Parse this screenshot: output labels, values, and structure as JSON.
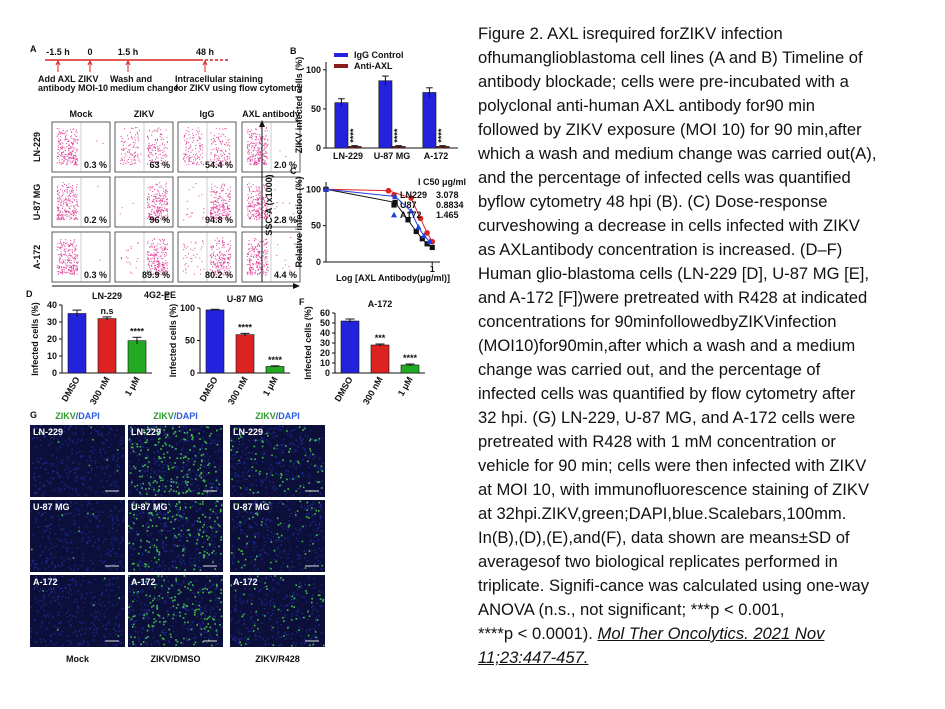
{
  "caption": {
    "lines": [
      "Figure 2. AXL isrequired forZIKV infection",
      "ofhumanglioblastoma cell lines (A and B) Timeline of",
      "antibody blockade; cells were pre-incubated with a",
      "polyclonal anti-human AXL antibody for90 min",
      "followed by ZIKV exposure (MOI 10) for 90 min,after",
      "which a wash and medium change was carried out(A),",
      "and the percentage of infected cells was quantified",
      "byflow cytometry 48 hpi (B). (C) Dose-response",
      "curveshowing a decrease in cells infected with ZIKV",
      "as AXLantibody concentration is increased. (D–F)",
      "Human glio-blastoma cells (LN-229 [D], U-87 MG [E],",
      "and A-172 [F])were pretreated with R428 at indicated",
      "concentrations for 90minfollowedbyZIKVinfection",
      "(MOI10)for90min,after which a wash and a medium",
      "change was carried out, and the percentage of",
      "infected cells was quantified by flow cytometry after",
      "32 hpi. (G) LN-229, U-87 MG, and A-172 cells were",
      "pretreated with R428 with 1 mM concentration or",
      "vehicle for 90 min; cells were then infected with ZIKV",
      "at MOI 10, with immunofluorescence staining of ZIKV",
      "at 32hpi.ZIKV,green;DAPI,blue.Scalebars,100mm.",
      "In(B),(D),(E),and(F), data shown are means±SD of",
      "averagesof two biological replicates performed in",
      "triplicate. Signifi-cance was calculated using one-way",
      "ANOVA (n.s., not significant; ***p < 0.001,"
    ],
    "final_text": "****p < 0.0001).",
    "citation": [
      "Mol Ther Oncolytics. 2021 Nov",
      "11;23:447-457."
    ]
  },
  "panel_a": {
    "label": "A",
    "times": [
      "-1.5 h",
      "0",
      "1.5 h",
      "48 h"
    ],
    "steps": [
      [
        "Add AXL",
        "antibody"
      ],
      [
        "ZIKV",
        "MOI-10"
      ],
      [
        "Wash and",
        "medium change"
      ],
      [
        "Intracellular staining",
        "for ZIKV using flow cytometry"
      ]
    ],
    "columns": [
      "Mock",
      "ZIKV",
      "IgG",
      "AXL antibody"
    ],
    "rows": [
      "LN-229",
      "U-87 MG",
      "A-172"
    ],
    "percentages": [
      [
        "0.3 %",
        "63 %",
        "54.4 %",
        "2.0 %"
      ],
      [
        "0.2 %",
        "96 %",
        "94.8 %",
        "2.8 %"
      ],
      [
        "0.3 %",
        "89.9 %",
        "80.2 %",
        "4.4 %"
      ]
    ],
    "y_axis": "SSC-A (x1000)",
    "x_axis": "4G2-PE"
  },
  "panel_g": {
    "label": "G",
    "header": [
      "ZIKV",
      "/DAPI"
    ],
    "rows": [
      "LN-229",
      "U-87 MG",
      "A-172"
    ],
    "columns": [
      "Mock",
      "ZIKV/DMSO",
      "ZIKV/R428"
    ]
  },
  "chart_data": [
    {
      "panel": "B",
      "type": "bar",
      "categories": [
        "LN-229",
        "U-87 MG",
        "A-172"
      ],
      "ylabel": "ZIKV infected cells (%)",
      "ylim": [
        0,
        110
      ],
      "yticks": [
        0,
        50,
        100
      ],
      "series": [
        {
          "name": "IgG Control",
          "color": "#2323dd",
          "values": [
            58,
            86,
            71
          ],
          "errors": [
            5,
            6,
            6
          ]
        },
        {
          "name": "Anti-AXL",
          "color": "#8b1a1a",
          "values": [
            2,
            2,
            2
          ],
          "errors": [
            1,
            1,
            1
          ],
          "significance": [
            "****",
            "****",
            "****"
          ]
        }
      ]
    },
    {
      "panel": "C",
      "type": "line",
      "xlabel": "Log [AXL Antibody(μg/ml)]",
      "ylabel": "Relative infection (%)",
      "xlog": true,
      "xlim": [
        0.01,
        1.4
      ],
      "xticks": [
        1
      ],
      "ylim": [
        0,
        110
      ],
      "yticks": [
        0,
        50,
        100
      ],
      "legend_title": "I C50 μg/ml",
      "series": [
        {
          "name": "LN229",
          "ic50": 3.078,
          "color": "#e02020",
          "marker": "circle",
          "x": [
            0.01,
            0.15,
            0.4,
            0.6,
            0.8,
            1.0
          ],
          "values": [
            100,
            98,
            88,
            60,
            40,
            28
          ]
        },
        {
          "name": "U87",
          "ic50": 0.8834,
          "color": "#111111",
          "marker": "square",
          "x": [
            0.01,
            0.2,
            0.35,
            0.5,
            0.65,
            0.8,
            1.0
          ],
          "values": [
            100,
            82,
            58,
            42,
            32,
            25,
            20
          ]
        },
        {
          "name": "A172",
          "ic50": 1.465,
          "color": "#2040e0",
          "marker": "triangle",
          "x": [
            0.01,
            0.2,
            0.4,
            0.55,
            0.7,
            0.9
          ],
          "values": [
            100,
            90,
            70,
            48,
            36,
            28
          ]
        }
      ]
    },
    {
      "panel": "D",
      "type": "bar",
      "title": "LN-229",
      "categories": [
        "DMSO",
        "300 nM",
        "1 μM"
      ],
      "values": [
        35,
        32,
        19
      ],
      "errors": [
        2,
        1,
        2
      ],
      "colors": [
        "#2323dd",
        "#dd2222",
        "#22aa22"
      ],
      "significance": [
        null,
        "n.s",
        "****"
      ],
      "ylabel": "Infected cells (%)",
      "ylim": [
        0,
        40
      ],
      "yticks": [
        0,
        10,
        20,
        30,
        40
      ]
    },
    {
      "panel": "E",
      "type": "bar",
      "title": "U-87 MG",
      "categories": [
        "DMSO",
        "300 nM",
        "1 μM"
      ],
      "values": [
        97,
        59,
        10
      ],
      "errors": [
        1,
        2,
        1
      ],
      "colors": [
        "#2323dd",
        "#dd2222",
        "#22aa22"
      ],
      "significance": [
        null,
        "****",
        "****"
      ],
      "ylabel": "Infected cells (%)",
      "ylim": [
        0,
        100
      ],
      "yticks": [
        0,
        50,
        100
      ]
    },
    {
      "panel": "F",
      "type": "bar",
      "title": "A-172",
      "categories": [
        "DMSO",
        "300 nM",
        "1 μM"
      ],
      "values": [
        52,
        28,
        8
      ],
      "errors": [
        2,
        1,
        1
      ],
      "colors": [
        "#2323dd",
        "#dd2222",
        "#22aa22"
      ],
      "significance": [
        null,
        "***",
        "****"
      ],
      "ylabel": "Infected cells (%)",
      "ylim": [
        0,
        60
      ],
      "yticks": [
        0,
        10,
        20,
        30,
        40,
        50,
        60
      ]
    }
  ]
}
